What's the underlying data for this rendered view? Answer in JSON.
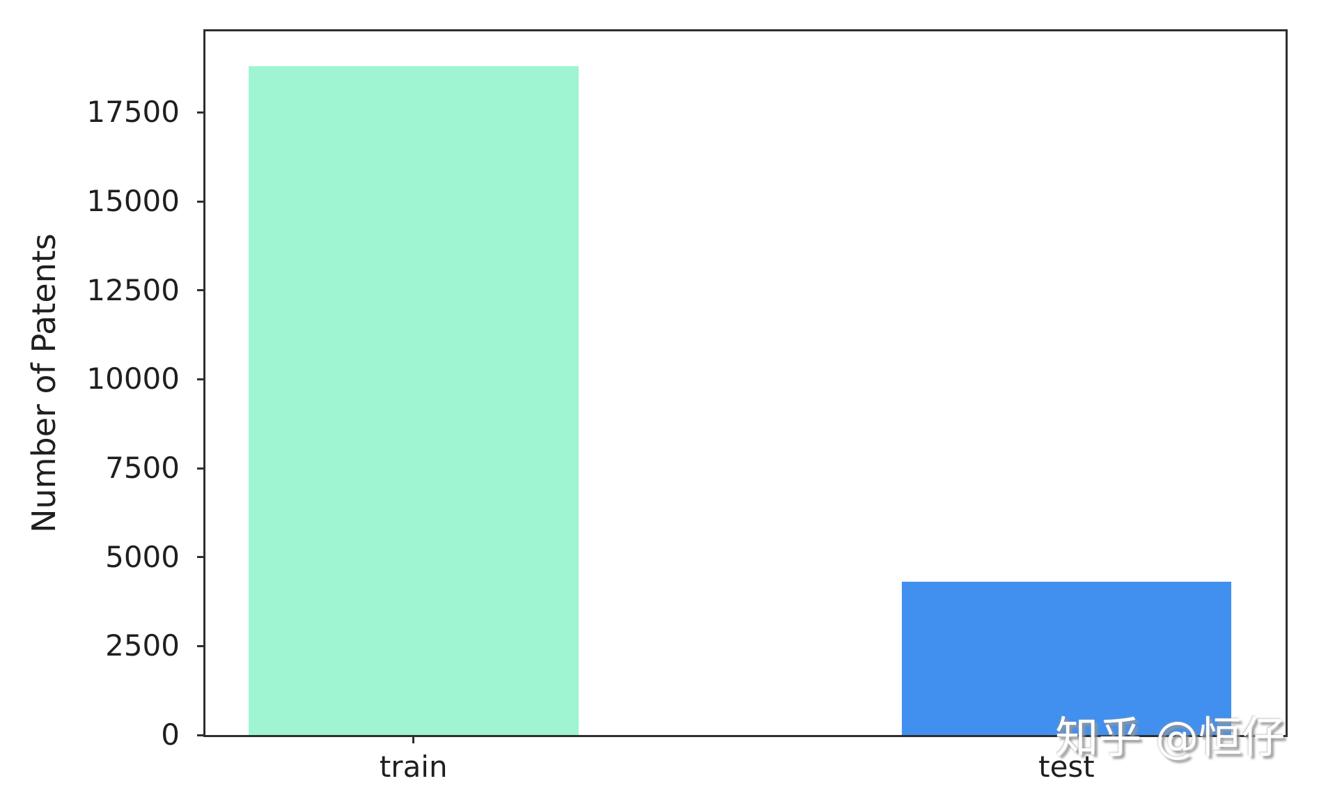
{
  "chart_data": {
    "type": "bar",
    "categories": [
      "train",
      "test"
    ],
    "values": [
      18800,
      4300
    ],
    "bar_colors": [
      "#9ff5d2",
      "#4190f0"
    ],
    "title": "",
    "xlabel": "",
    "ylabel": "Number of Patents",
    "ylim": [
      0,
      19780
    ],
    "yticks": [
      0,
      2500,
      5000,
      7500,
      10000,
      12500,
      15000,
      17500
    ],
    "grid": false,
    "legend_position": "none"
  },
  "watermark": {
    "text": "知乎 @恒仔"
  },
  "colors": {
    "spine": "#2e2e2e",
    "text": "#1f1f1f",
    "background": "#ffffff",
    "watermark_text": "#ffffff",
    "watermark_shadow": "#9a9a9a"
  }
}
